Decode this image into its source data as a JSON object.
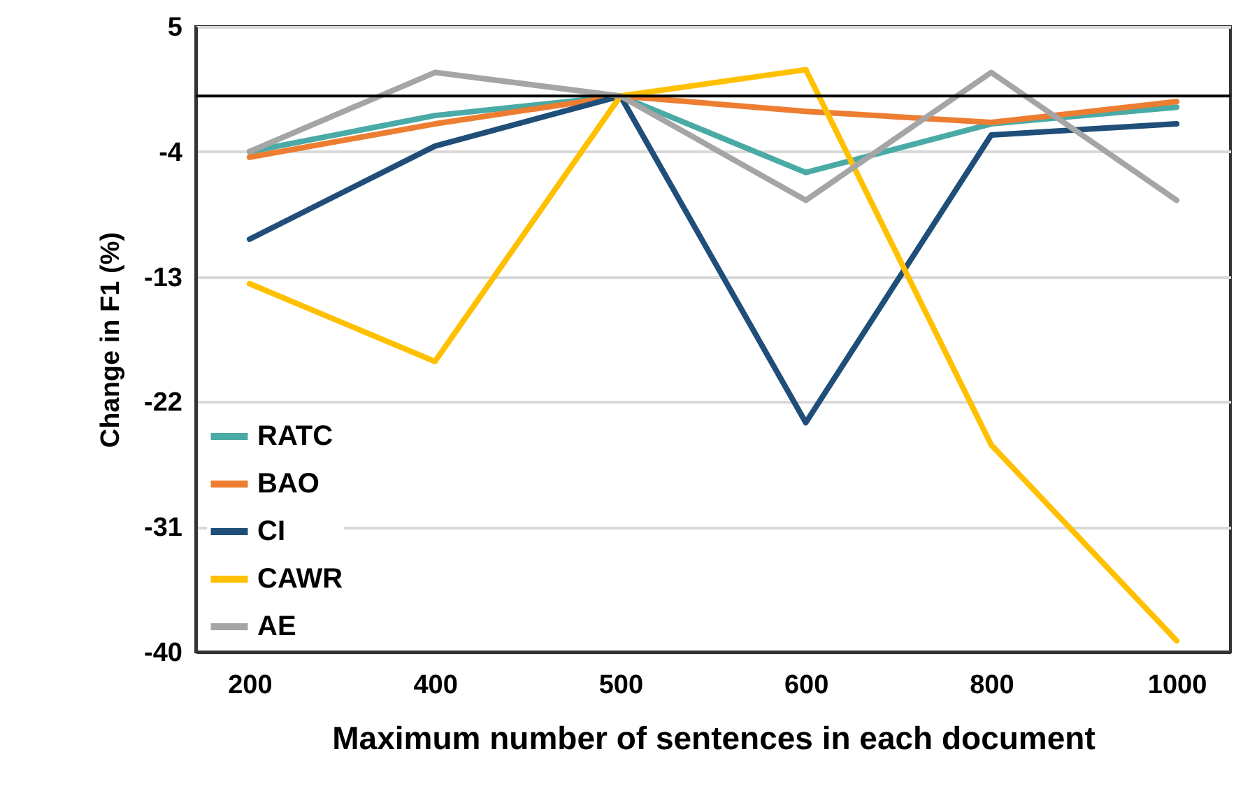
{
  "chart_data": {
    "type": "line",
    "xlabel": "Maximum number of sentences in each document",
    "ylabel": "Change in F1 (%)",
    "categories": [
      "200",
      "400",
      "500",
      "600",
      "800",
      "1000"
    ],
    "series": [
      {
        "name": "RATC",
        "color": "#4aaaa5",
        "values": [
          -4.0,
          -1.4,
          0,
          -5.5,
          -2.0,
          -0.8
        ]
      },
      {
        "name": "BAO",
        "color": "#ed7d31",
        "values": [
          -4.4,
          -2.0,
          0,
          -1.1,
          -1.9,
          -0.4
        ]
      },
      {
        "name": "CI",
        "color": "#1f4e79",
        "values": [
          -10.3,
          -3.6,
          0,
          -23.5,
          -2.8,
          -2.0
        ]
      },
      {
        "name": "CAWR",
        "color": "#ffc000",
        "values": [
          -13.5,
          -19.1,
          0,
          1.9,
          -25.1,
          -39.2
        ]
      },
      {
        "name": "AE",
        "color": "#a5a5a5",
        "values": [
          -4.0,
          1.7,
          0,
          -7.5,
          1.7,
          -7.5
        ]
      }
    ],
    "ylim": [
      -40,
      5
    ],
    "yticks": [
      5,
      -4,
      -13,
      -22,
      -31,
      -40
    ],
    "grid": "y",
    "legend": "bottom left",
    "ref_lines": [
      {
        "axis": "y",
        "value": 0,
        "color": "#000000"
      }
    ]
  }
}
